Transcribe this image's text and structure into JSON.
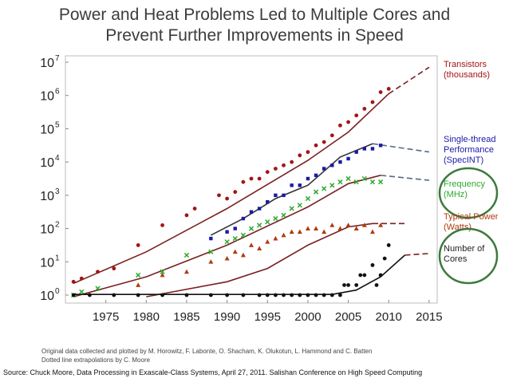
{
  "page": {
    "title_line1": "Power and Heat Problems Led to Multiple Cores and",
    "title_line2": "Prevent Further Improvements in Speed",
    "credit_line1": "Original data collected and plotted by M. Horowitz, F. Labonte, O. Shacham, K. Olukotun, L. Hammond and C. Batten",
    "credit_line2": "Dotted line extrapolations by C. Moore",
    "source": "Source: Chuck Moore, Data Processing in Exascale-Class Systems, April 27, 2011. Salishan Conference on High Speed Computing"
  },
  "colors": {
    "transistors": "#a31414",
    "single_thread": "#1a1aa8",
    "frequency": "#2ea82e",
    "power": "#b03a10",
    "cores": "#111111",
    "fit_line": "#7a2020",
    "circle": "#3c7a3c"
  },
  "chart_data": {
    "type": "scatter",
    "xlabel": "",
    "ylabel": "",
    "xlim": [
      1970,
      2016
    ],
    "ylim_log10": [
      0,
      7
    ],
    "x_ticks": [
      "1975",
      "1980",
      "1985",
      "1990",
      "1995",
      "2000",
      "2005",
      "2010",
      "2015"
    ],
    "y_ticks": [
      {
        "base": "10",
        "exp": "0"
      },
      {
        "base": "10",
        "exp": "1"
      },
      {
        "base": "10",
        "exp": "2"
      },
      {
        "base": "10",
        "exp": "3"
      },
      {
        "base": "10",
        "exp": "4"
      },
      {
        "base": "10",
        "exp": "5"
      },
      {
        "base": "10",
        "exp": "6"
      },
      {
        "base": "10",
        "exp": "7"
      }
    ],
    "series": [
      {
        "key": "transistors",
        "marker": "circle",
        "legend": [
          "Transistors",
          "(thousands)"
        ],
        "circled": false,
        "fit": [
          [
            1971,
            0.35
          ],
          [
            1980,
            1.3
          ],
          [
            1990,
            2.6
          ],
          [
            2000,
            4.05
          ],
          [
            2005,
            4.9
          ],
          [
            2010,
            6.05
          ]
        ],
        "extrapolation": [
          [
            2010,
            6.05
          ],
          [
            2015,
            6.85
          ]
        ],
        "points": [
          [
            1971,
            0.4
          ],
          [
            1972,
            0.5
          ],
          [
            1974,
            0.7
          ],
          [
            1976,
            0.8
          ],
          [
            1979,
            1.5
          ],
          [
            1982,
            2.1
          ],
          [
            1985,
            2.4
          ],
          [
            1986,
            2.6
          ],
          [
            1989,
            3.0
          ],
          [
            1990,
            2.9
          ],
          [
            1991,
            3.1
          ],
          [
            1992,
            3.4
          ],
          [
            1993,
            3.5
          ],
          [
            1994,
            3.5
          ],
          [
            1995,
            3.7
          ],
          [
            1996,
            3.8
          ],
          [
            1997,
            3.9
          ],
          [
            1998,
            4.0
          ],
          [
            1999,
            4.2
          ],
          [
            2000,
            4.3
          ],
          [
            2001,
            4.5
          ],
          [
            2002,
            4.6
          ],
          [
            2003,
            4.8
          ],
          [
            2004,
            5.1
          ],
          [
            2005,
            5.2
          ],
          [
            2006,
            5.4
          ],
          [
            2007,
            5.6
          ],
          [
            2008,
            5.8
          ],
          [
            2009,
            6.1
          ],
          [
            2010,
            6.2
          ]
        ]
      },
      {
        "key": "single_thread",
        "marker": "square",
        "legend": [
          "Single-thread",
          "Performance",
          "(SpecINT)"
        ],
        "circled": false,
        "fit": [
          [
            1988,
            1.8
          ],
          [
            1992,
            2.3
          ],
          [
            1996,
            2.9
          ],
          [
            2000,
            3.3
          ],
          [
            2004,
            4.15
          ],
          [
            2008,
            4.55
          ]
        ],
        "extrapolation": [
          [
            2008,
            4.55
          ],
          [
            2015,
            4.3
          ]
        ],
        "points": [
          [
            1988,
            1.7
          ],
          [
            1990,
            1.9
          ],
          [
            1991,
            2.0
          ],
          [
            1992,
            2.3
          ],
          [
            1993,
            2.5
          ],
          [
            1994,
            2.6
          ],
          [
            1995,
            2.8
          ],
          [
            1996,
            3.0
          ],
          [
            1997,
            3.0
          ],
          [
            1998,
            3.3
          ],
          [
            1999,
            3.3
          ],
          [
            2000,
            3.5
          ],
          [
            2001,
            3.6
          ],
          [
            2002,
            3.8
          ],
          [
            2003,
            3.9
          ],
          [
            2004,
            4.0
          ],
          [
            2005,
            4.1
          ],
          [
            2006,
            4.3
          ],
          [
            2007,
            4.4
          ],
          [
            2008,
            4.4
          ],
          [
            2009,
            4.5
          ]
        ]
      },
      {
        "key": "frequency",
        "marker": "x",
        "legend": [
          "Frequency",
          "(MHz)"
        ],
        "circled": true,
        "fit": [
          [
            1971,
            -0.05
          ],
          [
            1980,
            0.55
          ],
          [
            1990,
            1.5
          ],
          [
            2000,
            2.65
          ],
          [
            2005,
            3.35
          ],
          [
            2009,
            3.6
          ]
        ],
        "extrapolation": [
          [
            2009,
            3.6
          ],
          [
            2015,
            3.45
          ]
        ],
        "points": [
          [
            1971,
            0.0
          ],
          [
            1972,
            0.1
          ],
          [
            1974,
            0.2
          ],
          [
            1979,
            0.6
          ],
          [
            1982,
            0.7
          ],
          [
            1985,
            1.2
          ],
          [
            1988,
            1.3
          ],
          [
            1990,
            1.6
          ],
          [
            1991,
            1.7
          ],
          [
            1992,
            1.8
          ],
          [
            1993,
            2.0
          ],
          [
            1994,
            2.1
          ],
          [
            1995,
            2.2
          ],
          [
            1996,
            2.3
          ],
          [
            1997,
            2.4
          ],
          [
            1998,
            2.6
          ],
          [
            1999,
            2.7
          ],
          [
            2000,
            2.9
          ],
          [
            2001,
            3.1
          ],
          [
            2002,
            3.2
          ],
          [
            2003,
            3.3
          ],
          [
            2004,
            3.4
          ],
          [
            2005,
            3.5
          ],
          [
            2006,
            3.4
          ],
          [
            2007,
            3.5
          ],
          [
            2008,
            3.4
          ],
          [
            2009,
            3.4
          ]
        ]
      },
      {
        "key": "power",
        "marker": "triangle",
        "legend": [
          "Typical Power",
          "(Watts)"
        ],
        "circled": false,
        "fit": [
          [
            1980,
            -0.05
          ],
          [
            1990,
            0.4
          ],
          [
            1995,
            0.8
          ],
          [
            2000,
            1.5
          ],
          [
            2005,
            2.05
          ],
          [
            2008,
            2.15
          ]
        ],
        "extrapolation": [
          [
            2008,
            2.15
          ],
          [
            2012,
            2.15
          ]
        ],
        "points": [
          [
            1979,
            0.3
          ],
          [
            1982,
            0.6
          ],
          [
            1985,
            0.7
          ],
          [
            1988,
            1.0
          ],
          [
            1990,
            1.1
          ],
          [
            1991,
            1.3
          ],
          [
            1992,
            1.2
          ],
          [
            1993,
            1.5
          ],
          [
            1994,
            1.4
          ],
          [
            1995,
            1.6
          ],
          [
            1996,
            1.7
          ],
          [
            1997,
            1.8
          ],
          [
            1998,
            1.9
          ],
          [
            1999,
            1.9
          ],
          [
            2000,
            2.0
          ],
          [
            2001,
            2.0
          ],
          [
            2002,
            1.9
          ],
          [
            2003,
            2.1
          ],
          [
            2004,
            2.0
          ],
          [
            2005,
            2.1
          ],
          [
            2006,
            2.0
          ],
          [
            2007,
            2.1
          ],
          [
            2008,
            1.9
          ],
          [
            2009,
            2.1
          ]
        ]
      },
      {
        "key": "cores",
        "marker": "circle",
        "legend": [
          "Number of",
          "Cores"
        ],
        "circled": true,
        "fit": [
          [
            1971,
            0.02
          ],
          [
            1990,
            0.02
          ],
          [
            2003,
            0.02
          ],
          [
            2006,
            0.15
          ],
          [
            2009,
            0.55
          ],
          [
            2012,
            1.2
          ]
        ],
        "extrapolation": [
          [
            2012,
            1.2
          ],
          [
            2015,
            1.25
          ]
        ],
        "points": [
          [
            1971,
            0.0
          ],
          [
            1973,
            0.0
          ],
          [
            1976,
            0.0
          ],
          [
            1979,
            0.0
          ],
          [
            1982,
            0.0
          ],
          [
            1985,
            0.0
          ],
          [
            1988,
            0.0
          ],
          [
            1990,
            0.0
          ],
          [
            1992,
            0.0
          ],
          [
            1994,
            0.0
          ],
          [
            1995,
            0.0
          ],
          [
            1996,
            0.0
          ],
          [
            1997,
            0.0
          ],
          [
            1998,
            0.0
          ],
          [
            1999,
            0.0
          ],
          [
            2000,
            0.0
          ],
          [
            2001,
            0.0
          ],
          [
            2002,
            0.0
          ],
          [
            2003,
            0.0
          ],
          [
            2004,
            0.0
          ],
          [
            2004.5,
            0.3
          ],
          [
            2005,
            0.3
          ],
          [
            2006,
            0.3
          ],
          [
            2006.5,
            0.6
          ],
          [
            2007,
            0.6
          ],
          [
            2008,
            0.9
          ],
          [
            2008.5,
            0.3
          ],
          [
            2009,
            0.6
          ],
          [
            2009.5,
            1.1
          ],
          [
            2010,
            1.5
          ]
        ]
      }
    ]
  }
}
